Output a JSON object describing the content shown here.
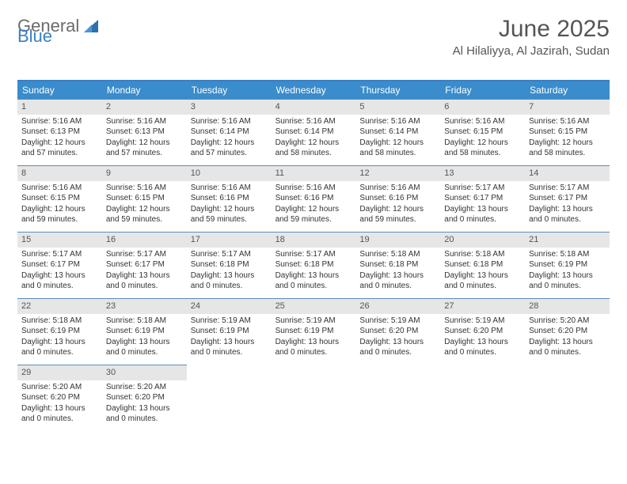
{
  "brand": {
    "word1": "General",
    "word2": "Blue"
  },
  "title": "June 2025",
  "location": "Al Hilaliyya, Al Jazirah, Sudan",
  "accent_color": "#3a8ccc",
  "border_color": "#5a8fbd",
  "daynum_bg": "#e6e6e6",
  "day_headers": [
    "Sunday",
    "Monday",
    "Tuesday",
    "Wednesday",
    "Thursday",
    "Friday",
    "Saturday"
  ],
  "days": [
    {
      "n": "1",
      "sr": "5:16 AM",
      "ss": "6:13 PM",
      "dl": "12 hours and 57 minutes."
    },
    {
      "n": "2",
      "sr": "5:16 AM",
      "ss": "6:13 PM",
      "dl": "12 hours and 57 minutes."
    },
    {
      "n": "3",
      "sr": "5:16 AM",
      "ss": "6:14 PM",
      "dl": "12 hours and 57 minutes."
    },
    {
      "n": "4",
      "sr": "5:16 AM",
      "ss": "6:14 PM",
      "dl": "12 hours and 58 minutes."
    },
    {
      "n": "5",
      "sr": "5:16 AM",
      "ss": "6:14 PM",
      "dl": "12 hours and 58 minutes."
    },
    {
      "n": "6",
      "sr": "5:16 AM",
      "ss": "6:15 PM",
      "dl": "12 hours and 58 minutes."
    },
    {
      "n": "7",
      "sr": "5:16 AM",
      "ss": "6:15 PM",
      "dl": "12 hours and 58 minutes."
    },
    {
      "n": "8",
      "sr": "5:16 AM",
      "ss": "6:15 PM",
      "dl": "12 hours and 59 minutes."
    },
    {
      "n": "9",
      "sr": "5:16 AM",
      "ss": "6:15 PM",
      "dl": "12 hours and 59 minutes."
    },
    {
      "n": "10",
      "sr": "5:16 AM",
      "ss": "6:16 PM",
      "dl": "12 hours and 59 minutes."
    },
    {
      "n": "11",
      "sr": "5:16 AM",
      "ss": "6:16 PM",
      "dl": "12 hours and 59 minutes."
    },
    {
      "n": "12",
      "sr": "5:16 AM",
      "ss": "6:16 PM",
      "dl": "12 hours and 59 minutes."
    },
    {
      "n": "13",
      "sr": "5:17 AM",
      "ss": "6:17 PM",
      "dl": "13 hours and 0 minutes."
    },
    {
      "n": "14",
      "sr": "5:17 AM",
      "ss": "6:17 PM",
      "dl": "13 hours and 0 minutes."
    },
    {
      "n": "15",
      "sr": "5:17 AM",
      "ss": "6:17 PM",
      "dl": "13 hours and 0 minutes."
    },
    {
      "n": "16",
      "sr": "5:17 AM",
      "ss": "6:17 PM",
      "dl": "13 hours and 0 minutes."
    },
    {
      "n": "17",
      "sr": "5:17 AM",
      "ss": "6:18 PM",
      "dl": "13 hours and 0 minutes."
    },
    {
      "n": "18",
      "sr": "5:17 AM",
      "ss": "6:18 PM",
      "dl": "13 hours and 0 minutes."
    },
    {
      "n": "19",
      "sr": "5:18 AM",
      "ss": "6:18 PM",
      "dl": "13 hours and 0 minutes."
    },
    {
      "n": "20",
      "sr": "5:18 AM",
      "ss": "6:18 PM",
      "dl": "13 hours and 0 minutes."
    },
    {
      "n": "21",
      "sr": "5:18 AM",
      "ss": "6:19 PM",
      "dl": "13 hours and 0 minutes."
    },
    {
      "n": "22",
      "sr": "5:18 AM",
      "ss": "6:19 PM",
      "dl": "13 hours and 0 minutes."
    },
    {
      "n": "23",
      "sr": "5:18 AM",
      "ss": "6:19 PM",
      "dl": "13 hours and 0 minutes."
    },
    {
      "n": "24",
      "sr": "5:19 AM",
      "ss": "6:19 PM",
      "dl": "13 hours and 0 minutes."
    },
    {
      "n": "25",
      "sr": "5:19 AM",
      "ss": "6:19 PM",
      "dl": "13 hours and 0 minutes."
    },
    {
      "n": "26",
      "sr": "5:19 AM",
      "ss": "6:20 PM",
      "dl": "13 hours and 0 minutes."
    },
    {
      "n": "27",
      "sr": "5:19 AM",
      "ss": "6:20 PM",
      "dl": "13 hours and 0 minutes."
    },
    {
      "n": "28",
      "sr": "5:20 AM",
      "ss": "6:20 PM",
      "dl": "13 hours and 0 minutes."
    },
    {
      "n": "29",
      "sr": "5:20 AM",
      "ss": "6:20 PM",
      "dl": "13 hours and 0 minutes."
    },
    {
      "n": "30",
      "sr": "5:20 AM",
      "ss": "6:20 PM",
      "dl": "13 hours and 0 minutes."
    }
  ],
  "labels": {
    "sunrise": "Sunrise: ",
    "sunset": "Sunset: ",
    "daylight": "Daylight: "
  }
}
